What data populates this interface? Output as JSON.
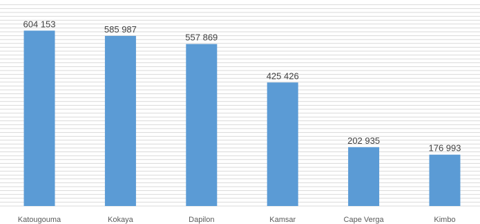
{
  "chart_data": {
    "type": "bar",
    "categories": [
      "Katougouma",
      "Kokaya",
      "Dapilon",
      "Kamsar",
      "Cape Verga",
      "Kimbo"
    ],
    "values": [
      604153,
      585987,
      557869,
      425426,
      202935,
      176993
    ],
    "value_labels": [
      "604 153",
      "585 987",
      "557 869",
      "425 426",
      "202 935",
      "176 993"
    ],
    "title": "",
    "xlabel": "",
    "ylabel": "",
    "ylim": [
      0,
      700000
    ],
    "grid": true,
    "legend": "none",
    "bar_color": "#5b9bd5"
  }
}
